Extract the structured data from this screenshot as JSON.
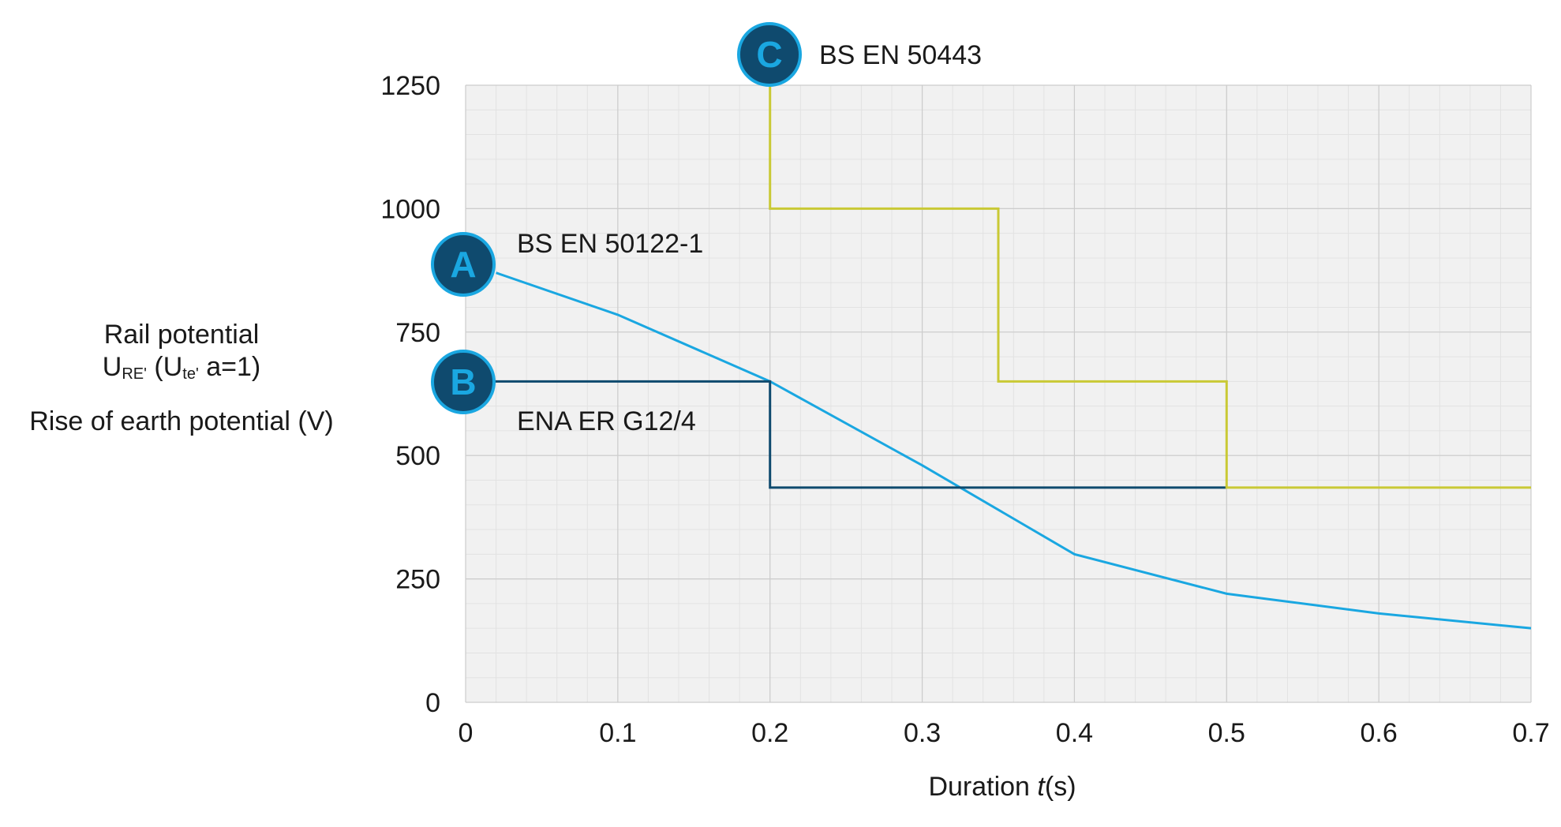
{
  "chart_data": {
    "type": "line",
    "xlabel_prefix": "Duration ",
    "xlabel_var": "t",
    "xlabel_suffix": "(s)",
    "ylabel": {
      "line1": "Rail potential",
      "line2_main": "U",
      "line2_sub": "RE'",
      "line2_paren_open": " (U",
      "line2_paren_sub": "te'",
      "line2_paren_rest": " a=1)",
      "line3": "Rise of earth potential (V)"
    },
    "xlim": [
      0,
      0.7
    ],
    "ylim": [
      0,
      1250
    ],
    "x_ticks": [
      "0",
      "0.1",
      "0.2",
      "0.3",
      "0.4",
      "0.5",
      "0.6",
      "0.7"
    ],
    "y_ticks": [
      "0",
      "250",
      "500",
      "750",
      "1000",
      "1250"
    ],
    "grid": true,
    "series": [
      {
        "name": "BS EN 50122-1",
        "marker": "A",
        "color": "#1aa7e1",
        "points": [
          [
            0.02,
            870
          ],
          [
            0.1,
            785
          ],
          [
            0.2,
            650
          ],
          [
            0.3,
            480
          ],
          [
            0.4,
            300
          ],
          [
            0.5,
            220
          ],
          [
            0.6,
            180
          ],
          [
            0.7,
            150
          ]
        ]
      },
      {
        "name": "ENA ER G12/4",
        "marker": "B",
        "color": "#0e4a6e",
        "points": [
          [
            0,
            650
          ],
          [
            0.2,
            650
          ],
          [
            0.2,
            435
          ],
          [
            0.5,
            435
          ]
        ]
      },
      {
        "name": "BS EN 50443",
        "marker": "C",
        "color": "#c9c935",
        "points": [
          [
            0.2,
            1250
          ],
          [
            0.2,
            1000
          ],
          [
            0.35,
            1000
          ],
          [
            0.35,
            650
          ],
          [
            0.5,
            650
          ],
          [
            0.5,
            435
          ],
          [
            0.7,
            435
          ]
        ]
      }
    ],
    "colors": {
      "badge_fill": "#0f4a6e",
      "badge_ring": "#1aa7e1",
      "badge_text": "#1aa7e1",
      "plot_bg": "#f1f1f1"
    }
  }
}
